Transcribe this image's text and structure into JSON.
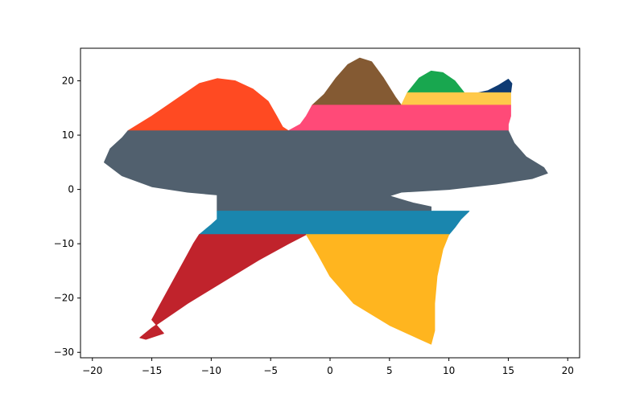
{
  "chart_data": {
    "type": "area",
    "title": "",
    "xlabel": "",
    "ylabel": "",
    "xlim": [
      -21,
      21
    ],
    "ylim": [
      -31,
      26
    ],
    "grid": false,
    "legend": "none",
    "x_ticks": [
      -20,
      -15,
      -10,
      -5,
      0,
      5,
      10,
      15,
      20
    ],
    "x_tick_labels": [
      "−20",
      "−15",
      "−10",
      "−5",
      "0",
      "5",
      "10",
      "15",
      "20"
    ],
    "y_ticks": [
      -30,
      -20,
      -10,
      0,
      10,
      20
    ],
    "y_tick_labels": [
      "−30",
      "−20",
      "−10",
      "0",
      "10",
      "20"
    ],
    "regions": [
      {
        "id": "brown-peak",
        "color": "#845A33",
        "points": [
          [
            -1.5,
            15.5
          ],
          [
            -0.5,
            17.5
          ],
          [
            0.5,
            20.5
          ],
          [
            1.5,
            23
          ],
          [
            2.5,
            24.2
          ],
          [
            3.5,
            23.5
          ],
          [
            4.5,
            20.5
          ],
          [
            5.5,
            17
          ],
          [
            6,
            15.5
          ]
        ]
      },
      {
        "id": "green-peak",
        "color": "#18A74F",
        "points": [
          [
            6.5,
            17.8
          ],
          [
            7.5,
            20.5
          ],
          [
            8.5,
            21.8
          ],
          [
            9.5,
            21.5
          ],
          [
            10.5,
            20
          ],
          [
            11.3,
            17.8
          ]
        ]
      },
      {
        "id": "navy-peak",
        "color": "#0F3B73",
        "points": [
          [
            12.5,
            17.8
          ],
          [
            13.3,
            18.2
          ],
          [
            14.2,
            19.2
          ],
          [
            15,
            20.3
          ],
          [
            15.3,
            19.5
          ],
          [
            15.2,
            17.8
          ]
        ]
      },
      {
        "id": "yellow-band-top",
        "color": "#FFC94A",
        "points": [
          [
            6.5,
            17.8
          ],
          [
            15.2,
            17.8
          ],
          [
            15.2,
            15.5
          ],
          [
            6,
            15.5
          ]
        ]
      },
      {
        "id": "pink-band",
        "color": "#FF4A78",
        "points": [
          [
            -1.5,
            15.5
          ],
          [
            15.2,
            15.5
          ],
          [
            15.2,
            13.5
          ],
          [
            15,
            12
          ],
          [
            15,
            10.8
          ],
          [
            -3.5,
            10.8
          ],
          [
            -2.5,
            12
          ],
          [
            -2,
            13.5
          ]
        ]
      },
      {
        "id": "orange-peak",
        "color": "#FF4A22",
        "points": [
          [
            -17,
            10.8
          ],
          [
            -15,
            13.5
          ],
          [
            -13,
            16.5
          ],
          [
            -11,
            19.5
          ],
          [
            -9.5,
            20.4
          ],
          [
            -8,
            20
          ],
          [
            -6.5,
            18.5
          ],
          [
            -5.2,
            16.2
          ],
          [
            -4.5,
            13.5
          ],
          [
            -4,
            11.5
          ],
          [
            -3.5,
            10.8
          ]
        ]
      },
      {
        "id": "slate-body",
        "color": "#51606E",
        "points": [
          [
            -17,
            10.8
          ],
          [
            15,
            10.8
          ],
          [
            15.5,
            8.5
          ],
          [
            16.5,
            6
          ],
          [
            18,
            4
          ],
          [
            18.3,
            3
          ],
          [
            17,
            2
          ],
          [
            14,
            1
          ],
          [
            10,
            0
          ],
          [
            6,
            -0.5
          ],
          [
            5,
            -1.2
          ],
          [
            7,
            -2.5
          ],
          [
            8.5,
            -3.2
          ],
          [
            8.5,
            -4
          ],
          [
            -9.5,
            -4
          ],
          [
            -9.5,
            -1
          ],
          [
            -12,
            -0.5
          ],
          [
            -15,
            0.5
          ],
          [
            -17.5,
            2.5
          ],
          [
            -19,
            5
          ],
          [
            -18.5,
            7.5
          ],
          [
            -17.5,
            9.5
          ]
        ]
      },
      {
        "id": "teal-band",
        "color": "#1A86AE",
        "points": [
          [
            -9.5,
            -4
          ],
          [
            11.7,
            -4
          ],
          [
            11,
            -5.5
          ],
          [
            10.5,
            -7
          ],
          [
            10,
            -8.3
          ],
          [
            -11,
            -8.3
          ],
          [
            -10,
            -6.5
          ],
          [
            -9.5,
            -5.5
          ]
        ]
      },
      {
        "id": "red-lobe",
        "color": "#C0232C",
        "points": [
          [
            -11,
            -8.3
          ],
          [
            -2,
            -8.3
          ],
          [
            -3.5,
            -10
          ],
          [
            -6,
            -13
          ],
          [
            -9,
            -17
          ],
          [
            -12,
            -21
          ],
          [
            -15,
            -25.5
          ],
          [
            -16,
            -27.3
          ],
          [
            -15.5,
            -27.6
          ],
          [
            -14,
            -26.5
          ],
          [
            -15,
            -24
          ],
          [
            -14,
            -20
          ],
          [
            -13,
            -16
          ],
          [
            -12,
            -12
          ],
          [
            -11.5,
            -10
          ]
        ]
      },
      {
        "id": "amber-lobe",
        "color": "#FFB51F",
        "points": [
          [
            -2,
            -8.3
          ],
          [
            10,
            -8.3
          ],
          [
            9.5,
            -11
          ],
          [
            9,
            -16
          ],
          [
            8.8,
            -21
          ],
          [
            8.8,
            -26
          ],
          [
            8.5,
            -28.5
          ],
          [
            7.5,
            -27.5
          ],
          [
            5,
            -25
          ],
          [
            2,
            -21
          ],
          [
            0,
            -16
          ],
          [
            -1,
            -12
          ]
        ]
      }
    ]
  }
}
